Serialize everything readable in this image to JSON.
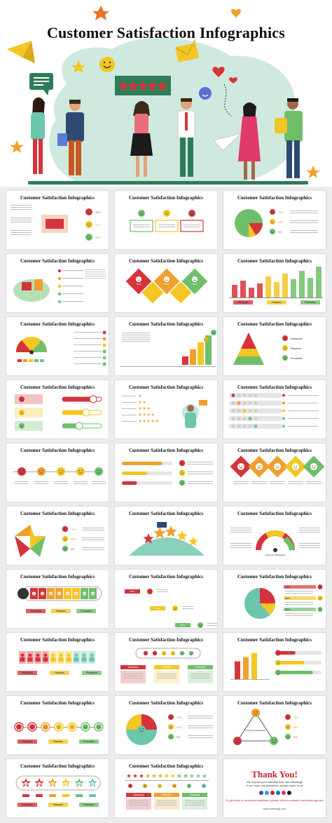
{
  "hero": {
    "title": "Customer Satisfaction Infographics"
  },
  "slide_title": "Customer Satisfaction Infographics",
  "labels": {
    "detractors": "Detractors",
    "passives": "Passives",
    "promoters": "Promoters",
    "customer_satisfaction": "Customer Satisfaction"
  },
  "pct": {
    "p75": "75%",
    "p65": "65%",
    "p5": "5%",
    "p60": "60%",
    "p50": "50%",
    "p80": "80%"
  },
  "thank_you": {
    "title": "Thank You!",
    "line1": "We respect your valuable time with SlideEgg!",
    "line2": "If you have any questions, please reach us at",
    "line3": "To get back to download templates, please visit our website www.slideegg.com",
    "link": "www.slideegg.com"
  },
  "slide_count": 29,
  "colors": {
    "red": "#d6343b",
    "orange": "#f0a02d",
    "yellow": "#f3c623",
    "green": "#6fbf6a",
    "teal": "#6cc5ad",
    "hero_blob": "#cfe9df"
  }
}
